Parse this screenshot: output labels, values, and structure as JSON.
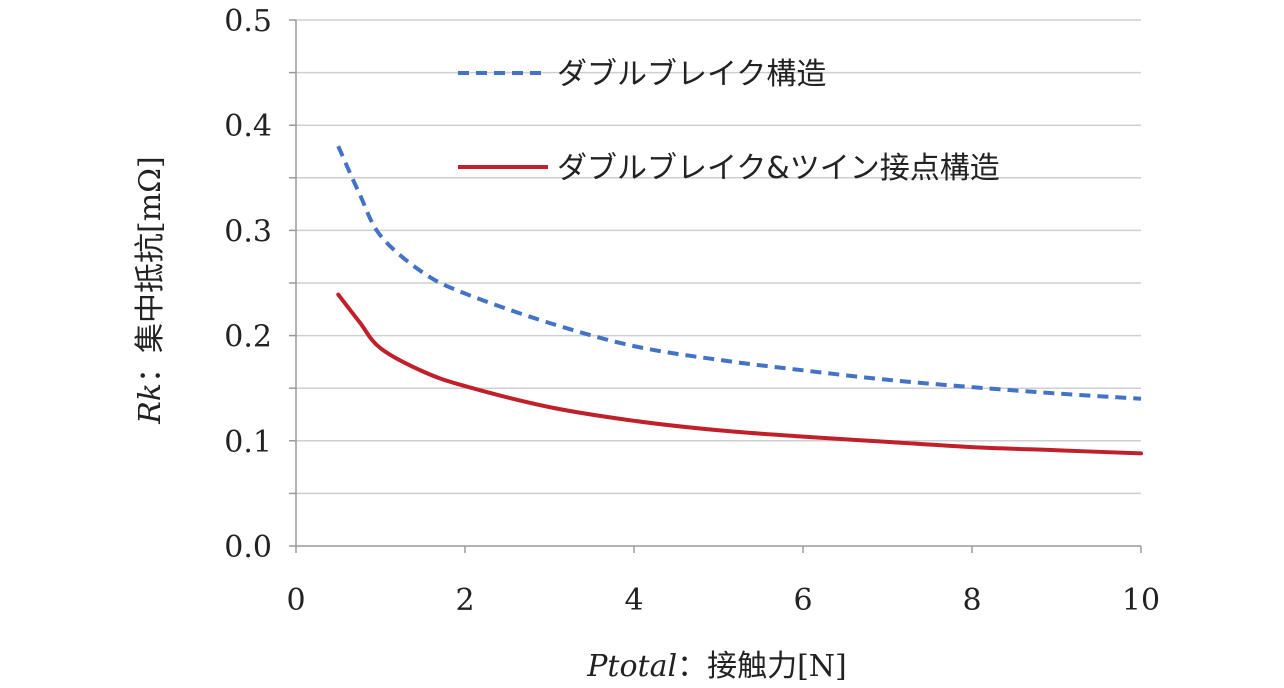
{
  "chart_data": {
    "type": "line",
    "title": "",
    "xlabel": {
      "italic": "Ptotal",
      "rest": "：接触力[N]"
    },
    "ylabel": {
      "italic": "Rk",
      "rest": "：集中抵抗[mΩ]"
    },
    "xlim": [
      0,
      10
    ],
    "ylim": [
      0,
      0.5
    ],
    "xticks": [
      0,
      2,
      4,
      6,
      8,
      10
    ],
    "xtick_labels": [
      "0",
      "2",
      "4",
      "6",
      "8",
      "10"
    ],
    "yticks": [
      0,
      0.1,
      0.2,
      0.3,
      0.4,
      0.5
    ],
    "ytick_labels": [
      "0.0",
      "0.1",
      "0.2",
      "0.3",
      "0.4",
      "0.5"
    ],
    "minor_ygrid": [
      0.05,
      0.15,
      0.25,
      0.35,
      0.45
    ],
    "grid": true,
    "legend_position": "top-right",
    "series": [
      {
        "name": "ダブルブレイク構造",
        "color": "#4472c4",
        "style": "dashed",
        "x": [
          0.5,
          0.75,
          1.0,
          1.5,
          2.0,
          3.0,
          4.0,
          5.0,
          6.0,
          7.0,
          8.0,
          9.0,
          10.0
        ],
        "y": [
          0.38,
          0.335,
          0.295,
          0.26,
          0.24,
          0.212,
          0.19,
          0.177,
          0.167,
          0.158,
          0.151,
          0.145,
          0.14
        ]
      },
      {
        "name": "ダブルブレイク&ツイン接点構造",
        "color": "#c0202a",
        "style": "solid",
        "x": [
          0.5,
          0.75,
          1.0,
          1.5,
          2.0,
          3.0,
          4.0,
          5.0,
          6.0,
          7.0,
          8.0,
          9.0,
          10.0
        ],
        "y": [
          0.239,
          0.213,
          0.188,
          0.166,
          0.152,
          0.132,
          0.119,
          0.11,
          0.104,
          0.099,
          0.094,
          0.091,
          0.088
        ]
      }
    ]
  }
}
